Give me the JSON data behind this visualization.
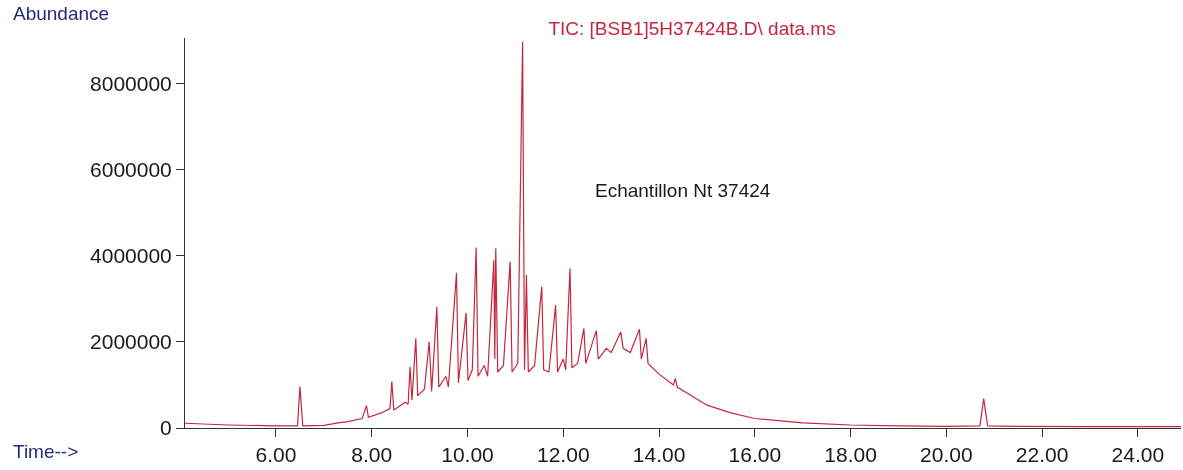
{
  "chart_data": {
    "type": "line",
    "title": "TIC: [BSB1]5H37424B.D\\ data.ms",
    "xlabel": "Time-->",
    "ylabel": "Abundance",
    "annotations": [
      "Echantillon Nt 37424"
    ],
    "x": [
      4.1,
      5.0,
      6.0,
      6.45,
      6.5,
      6.56,
      7.0,
      7.3,
      7.5,
      7.8,
      7.89,
      7.93,
      8.2,
      8.38,
      8.42,
      8.46,
      8.7,
      8.76,
      8.8,
      8.84,
      8.92,
      8.96,
      9.1,
      9.2,
      9.25,
      9.36,
      9.4,
      9.55,
      9.6,
      9.77,
      9.81,
      9.97,
      10.01,
      10.1,
      10.18,
      10.22,
      10.35,
      10.42,
      10.55,
      10.57,
      10.59,
      10.63,
      10.75,
      10.89,
      10.93,
      11.05,
      11.15,
      11.19,
      11.23,
      11.27,
      11.4,
      11.55,
      11.59,
      11.7,
      11.84,
      11.88,
      12.0,
      12.05,
      12.14,
      12.18,
      12.3,
      12.43,
      12.47,
      12.69,
      12.73,
      12.9,
      13.0,
      13.2,
      13.25,
      13.4,
      13.59,
      13.63,
      13.73,
      13.77,
      14.0,
      14.3,
      14.34,
      14.38,
      15.0,
      15.5,
      16.0,
      17.0,
      18.0,
      19.0,
      20.0,
      20.7,
      20.78,
      20.86,
      21.5,
      23.0,
      24.9
    ],
    "values": [
      110000,
      70000,
      50000,
      50000,
      960000,
      50000,
      60000,
      120000,
      150000,
      220000,
      520000,
      250000,
      350000,
      450000,
      1080000,
      420000,
      600000,
      550000,
      1420000,
      650000,
      2080000,
      750000,
      900000,
      2000000,
      850000,
      2810000,
      950000,
      1200000,
      950000,
      3600000,
      1050000,
      2670000,
      1100000,
      1350000,
      4190000,
      1200000,
      1450000,
      1200000,
      3900000,
      1600000,
      4170000,
      1300000,
      1450000,
      3860000,
      1300000,
      1500000,
      8960000,
      1350000,
      3550000,
      1300000,
      1450000,
      3280000,
      1350000,
      1300000,
      2850000,
      1300000,
      1600000,
      1350000,
      3700000,
      1400000,
      1500000,
      2310000,
      1500000,
      2260000,
      1600000,
      1850000,
      1750000,
      2230000,
      1850000,
      1750000,
      2290000,
      1600000,
      2080000,
      1500000,
      1250000,
      1000000,
      1150000,
      950000,
      530000,
      350000,
      220000,
      120000,
      70000,
      50000,
      40000,
      50000,
      680000,
      50000,
      40000,
      30000,
      30000
    ],
    "color": "#c4283e",
    "xlim": [
      4.1,
      24.9
    ],
    "xticks": [
      {
        "value": 6,
        "label": "6.00"
      },
      {
        "value": 8,
        "label": "8.00"
      },
      {
        "value": 10,
        "label": "10.00"
      },
      {
        "value": 12,
        "label": "12.00"
      },
      {
        "value": 14,
        "label": "14.00"
      },
      {
        "value": 16,
        "label": "16.00"
      },
      {
        "value": 18,
        "label": "18.00"
      },
      {
        "value": 20,
        "label": "20.00"
      },
      {
        "value": 22,
        "label": "22.00"
      },
      {
        "value": 24,
        "label": "24.00"
      }
    ],
    "ylim": [
      0,
      9050000
    ],
    "yticks": [
      0,
      2000000,
      4000000,
      6000000,
      8000000
    ],
    "marker": "none",
    "line_style": "solid"
  }
}
